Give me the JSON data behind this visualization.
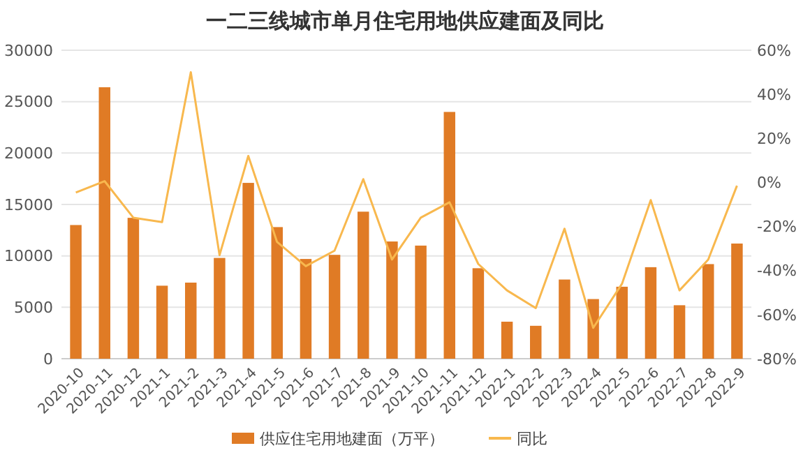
{
  "chart_data": {
    "type": "bar",
    "title": "一二三线城市单月住宅用地供应建面及同比",
    "categories": [
      "2020-10",
      "2020-11",
      "2020-12",
      "2021-1",
      "2021-2",
      "2021-3",
      "2021-4",
      "2021-5",
      "2021-6",
      "2021-7",
      "2021-8",
      "2021-9",
      "2021-10",
      "2021-11",
      "2021-12",
      "2022-1",
      "2022-2",
      "2022-3",
      "2022-4",
      "2022-5",
      "2022-6",
      "2022-7",
      "2022-8",
      "2022-9"
    ],
    "series": [
      {
        "name": "供应住宅用地建面（万平）",
        "color": "#e07b25",
        "values": [
          13000,
          26400,
          13700,
          7100,
          7400,
          9800,
          17100,
          12800,
          9700,
          10100,
          14300,
          11400,
          11000,
          24000,
          8800,
          3600,
          3200,
          7700,
          5800,
          7000,
          8900,
          5200,
          9200,
          11200
        ]
      },
      {
        "name": "同比",
        "type": "line",
        "axis": "y2",
        "color": "#f8b84e",
        "values": [
          -4.6,
          0.6,
          -16,
          -18,
          50,
          -33,
          12,
          -27,
          -38,
          -31,
          1.5,
          -35,
          -16,
          -9,
          -37,
          -49,
          -57,
          -21,
          -66,
          -46,
          -8,
          -49,
          -35,
          -1.5
        ]
      }
    ],
    "ylim": [
      0,
      30000
    ],
    "yticks": [
      0,
      5000,
      10000,
      15000,
      20000,
      25000,
      30000
    ],
    "y2lim": [
      -80,
      60
    ],
    "y2ticks": [
      {
        "value": -80,
        "label": "-80%"
      },
      {
        "value": -60,
        "label": "-60%"
      },
      {
        "value": -40,
        "label": "-40%"
      },
      {
        "value": -20,
        "label": "-20%"
      },
      {
        "value": 0,
        "label": "0%"
      },
      {
        "value": 20,
        "label": "20%"
      },
      {
        "value": 40,
        "label": "40%"
      },
      {
        "value": 60,
        "label": "60%"
      }
    ],
    "grid": "y",
    "legend": "bottom"
  }
}
